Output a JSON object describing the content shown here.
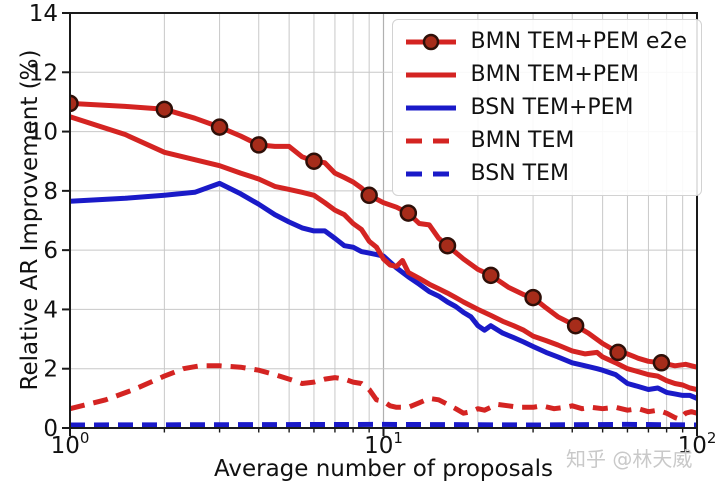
{
  "chart_data": {
    "type": "line",
    "title": "",
    "xlabel": "Average number of proposals",
    "ylabel": "Relative AR Improvement (%)",
    "x_scale": "log",
    "xlim": [
      1,
      100
    ],
    "ylim": [
      0,
      14
    ],
    "yticks": [
      0,
      2,
      4,
      6,
      8,
      10,
      12,
      14
    ],
    "xticks": [
      {
        "base": "10",
        "exp": "0",
        "value": 1
      },
      {
        "base": "10",
        "exp": "1",
        "value": 10
      },
      {
        "base": "10",
        "exp": "2",
        "value": 100
      }
    ],
    "x_minor_gridlines": [
      2,
      3,
      4,
      5,
      6,
      7,
      8,
      9,
      20,
      30,
      40,
      50,
      60,
      70,
      80,
      90
    ],
    "x_major_gridlines": [
      10
    ],
    "y_gridlines": [
      2,
      4,
      6,
      8,
      10,
      12
    ],
    "grid": true,
    "legend_position": "upper right",
    "colors": {
      "red": "#d42422",
      "blue": "#1a1ac8",
      "marker_fill": "#a62c1a",
      "marker_edge": "#2e0f08",
      "grid_minor": "#c8c8c8",
      "grid_major": "#b0b0b0",
      "axis": "#1a1a1a",
      "tick_label": "#111111",
      "watermark": "#c9c9c9"
    },
    "series": [
      {
        "name": "BMN TEM+PEM e2e",
        "color": "#d42422",
        "style": "solid",
        "width": 5,
        "marker": "circle",
        "x": [
          1,
          1.5,
          2,
          2.5,
          3,
          3.5,
          4,
          4.5,
          5,
          5.5,
          6,
          6.5,
          7,
          7.5,
          8,
          8.5,
          9,
          10,
          11,
          12,
          13,
          14,
          15,
          16,
          18,
          20,
          22,
          25,
          28,
          30,
          33,
          36,
          41,
          45,
          50,
          56,
          60,
          65,
          70,
          77,
          85,
          92,
          100
        ],
        "y": [
          10.95,
          10.85,
          10.75,
          10.45,
          10.15,
          9.85,
          9.55,
          9.5,
          9.5,
          9.15,
          9.0,
          8.95,
          8.6,
          8.45,
          8.3,
          8.1,
          7.85,
          7.6,
          7.45,
          7.25,
          6.9,
          6.85,
          6.4,
          6.15,
          5.7,
          5.35,
          5.15,
          4.75,
          4.5,
          4.4,
          4.05,
          3.75,
          3.45,
          3.2,
          2.85,
          2.55,
          2.5,
          2.35,
          2.25,
          2.2,
          2.1,
          2.15,
          2.05
        ],
        "marker_x": [
          1,
          2,
          3,
          4,
          6,
          9,
          12,
          16,
          22,
          30,
          41,
          56,
          77
        ],
        "marker_y": [
          10.95,
          10.75,
          10.15,
          9.55,
          9.0,
          7.85,
          7.25,
          6.15,
          5.15,
          4.4,
          3.45,
          2.55,
          2.2
        ]
      },
      {
        "name": "BMN TEM+PEM",
        "color": "#d42422",
        "style": "solid",
        "width": 5,
        "x": [
          1,
          1.5,
          2,
          2.5,
          3,
          3.5,
          4,
          4.5,
          5,
          5.5,
          6,
          6.5,
          7,
          7.5,
          8,
          8.5,
          9,
          9.5,
          10,
          10.5,
          11,
          11.5,
          12,
          13,
          14,
          15,
          16,
          17,
          18,
          20,
          22,
          24,
          26,
          28,
          30,
          33,
          36,
          40,
          44,
          48,
          50,
          55,
          60,
          65,
          70,
          75,
          80,
          85,
          90,
          95,
          100
        ],
        "y": [
          10.5,
          9.9,
          9.3,
          9.05,
          8.85,
          8.6,
          8.4,
          8.15,
          8.05,
          7.95,
          7.85,
          7.6,
          7.35,
          7.2,
          6.9,
          6.7,
          6.3,
          6.1,
          5.7,
          5.5,
          5.45,
          5.65,
          5.25,
          5.05,
          4.85,
          4.7,
          4.55,
          4.4,
          4.25,
          4.0,
          3.8,
          3.6,
          3.45,
          3.3,
          3.1,
          2.95,
          2.8,
          2.6,
          2.5,
          2.55,
          2.4,
          2.2,
          2.0,
          1.9,
          1.8,
          1.75,
          1.6,
          1.5,
          1.45,
          1.35,
          1.3
        ]
      },
      {
        "name": "BSN TEM+PEM",
        "color": "#1a1ac8",
        "style": "solid",
        "width": 5,
        "x": [
          1,
          1.5,
          2,
          2.5,
          3,
          3.5,
          4,
          4.5,
          5,
          5.5,
          6,
          6.5,
          7,
          7.5,
          8,
          8.5,
          9,
          9.5,
          10,
          11,
          12,
          13,
          14,
          15,
          16,
          17,
          18,
          19,
          20,
          21,
          22,
          24,
          26,
          28,
          30,
          33,
          36,
          40,
          44,
          48,
          50,
          55,
          60,
          65,
          70,
          75,
          80,
          85,
          90,
          95,
          100
        ],
        "y": [
          7.65,
          7.75,
          7.85,
          7.95,
          8.25,
          7.9,
          7.55,
          7.2,
          6.95,
          6.75,
          6.65,
          6.65,
          6.4,
          6.15,
          6.1,
          5.95,
          5.9,
          5.85,
          5.8,
          5.4,
          5.1,
          4.85,
          4.6,
          4.45,
          4.25,
          4.1,
          3.9,
          3.75,
          3.45,
          3.3,
          3.45,
          3.2,
          3.05,
          2.9,
          2.75,
          2.55,
          2.4,
          2.2,
          2.1,
          2.0,
          1.95,
          1.8,
          1.5,
          1.4,
          1.3,
          1.35,
          1.2,
          1.15,
          1.1,
          1.1,
          1.0
        ]
      },
      {
        "name": "BMN TEM",
        "color": "#d42422",
        "style": "dashed",
        "width": 5,
        "x": [
          1,
          1.3,
          1.6,
          2,
          2.3,
          2.6,
          3,
          3.5,
          4,
          4.5,
          5,
          5.5,
          6,
          6.5,
          7,
          7.5,
          8,
          8.5,
          9,
          9.5,
          10,
          10.5,
          11,
          12,
          13,
          14,
          15,
          16,
          17,
          18,
          19,
          20,
          21,
          22,
          23,
          25,
          27,
          30,
          32,
          35,
          38,
          40,
          43,
          46,
          50,
          55,
          60,
          65,
          70,
          75,
          80,
          85,
          88,
          92,
          96,
          100
        ],
        "y": [
          0.65,
          0.95,
          1.3,
          1.75,
          2.0,
          2.1,
          2.1,
          2.05,
          1.95,
          1.8,
          1.65,
          1.5,
          1.55,
          1.65,
          1.7,
          1.65,
          1.55,
          1.5,
          1.3,
          0.95,
          0.9,
          0.75,
          0.7,
          0.7,
          0.85,
          1.0,
          0.95,
          0.8,
          0.65,
          0.5,
          0.55,
          0.65,
          0.6,
          0.7,
          0.8,
          0.75,
          0.7,
          0.7,
          0.75,
          0.65,
          0.7,
          0.75,
          0.65,
          0.7,
          0.65,
          0.7,
          0.6,
          0.65,
          0.55,
          0.6,
          0.5,
          0.35,
          0.3,
          0.5,
          0.55,
          0.5
        ]
      },
      {
        "name": "BSN TEM",
        "color": "#1a1ac8",
        "style": "dashed",
        "width": 5,
        "x": [
          1,
          10,
          30,
          60,
          100
        ],
        "y": [
          0.1,
          0.12,
          0.1,
          0.12,
          0.1
        ]
      }
    ],
    "watermark": "知乎 @林天威"
  }
}
